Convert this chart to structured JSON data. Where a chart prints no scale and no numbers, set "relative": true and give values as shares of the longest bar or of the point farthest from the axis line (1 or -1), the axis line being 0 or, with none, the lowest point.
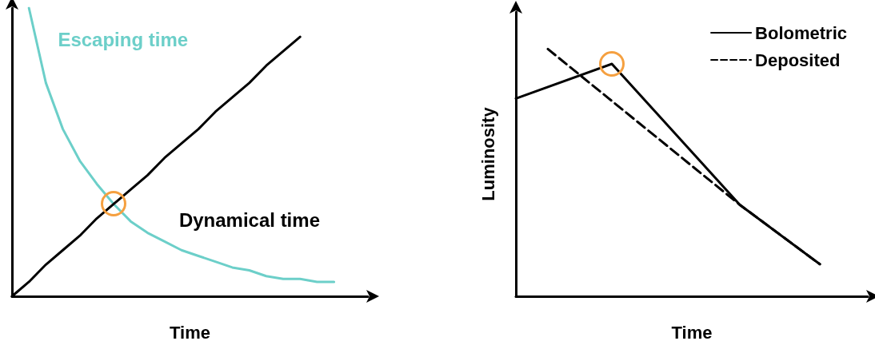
{
  "chart_data": [
    {
      "type": "line",
      "relative": true,
      "xlabel": "Time",
      "legend": false,
      "grid": false,
      "marker": "none",
      "categories": [
        null,
        null,
        null,
        null,
        null,
        null,
        null,
        null,
        null,
        null,
        null,
        null,
        null,
        null,
        null,
        null,
        null,
        null,
        null,
        null,
        null,
        null
      ],
      "series": [
        {
          "name": "Escaping time",
          "color": "#6ccfc9",
          "values": [
            null,
            1.0,
            0.74,
            0.58,
            0.47,
            0.39,
            0.32,
            0.26,
            0.22,
            0.19,
            0.16,
            0.14,
            0.12,
            0.1,
            0.09,
            0.07,
            0.06,
            0.06,
            0.05,
            0.05,
            null,
            null
          ]
        },
        {
          "name": "Dynamical time",
          "color": "#000000",
          "values": [
            0,
            0.05,
            0.11,
            0.16,
            0.21,
            0.27,
            0.32,
            0.37,
            0.42,
            0.48,
            0.53,
            0.58,
            0.64,
            0.69,
            0.74,
            0.8,
            0.85,
            0.9,
            null,
            null,
            null,
            null
          ]
        }
      ]
    },
    {
      "type": "line",
      "relative": true,
      "xlabel": "Time",
      "ylabel": "Luminosity",
      "legend": "top right",
      "grid": false,
      "marker": "none",
      "categories": [
        null,
        null,
        null,
        null,
        null,
        null,
        null,
        null,
        null,
        null,
        null,
        null,
        null,
        null,
        null,
        null,
        null,
        null,
        null,
        null,
        null,
        null,
        null
      ],
      "series": [
        {
          "name": "Bolometric",
          "color": "#000000",
          "line_style": "solid",
          "values": [
            0.8,
            null,
            null,
            null,
            null,
            null,
            0.94,
            null,
            null,
            null,
            null,
            null,
            null,
            null,
            0.37,
            null,
            null,
            null,
            null,
            0.13,
            null,
            null,
            null
          ]
        },
        {
          "name": "Deposited",
          "color": "#000000",
          "line_style": "dashed",
          "values": [
            null,
            null,
            1.0,
            null,
            null,
            null,
            null,
            null,
            null,
            null,
            null,
            null,
            null,
            null,
            0.37,
            null,
            null,
            null,
            null,
            0.13,
            null,
            null,
            null
          ]
        }
      ]
    }
  ]
}
